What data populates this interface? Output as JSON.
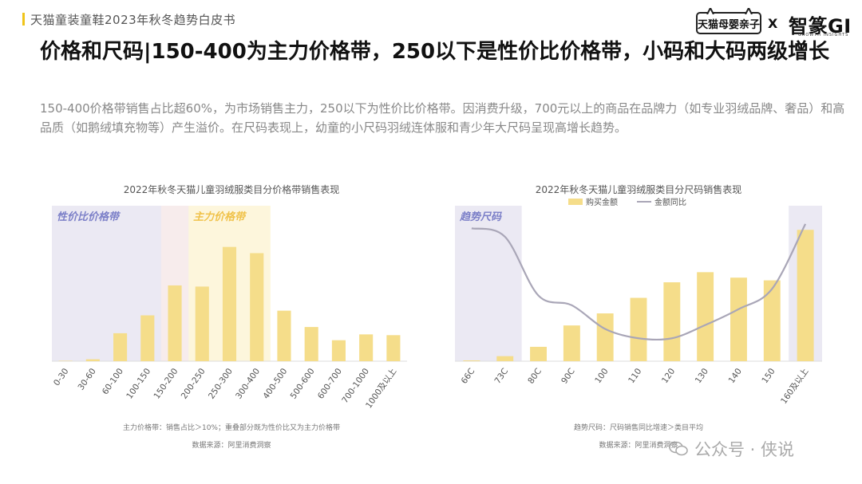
{
  "header": {
    "report_title": "天猫童装童鞋2023年秋冬趋势白皮书",
    "brand_left": "天猫母婴亲子",
    "brand_sep": "X",
    "brand_right": "智篆GI",
    "brand_right_sub": "GROWTH INSIGHTS"
  },
  "headline": "价格和尺码|150-400为主力价格带，250以下是性价比价格带，小码和大码两级增长",
  "subtext": "150-400价格带销售占比超60%，为市场销售主力，250以下为性价比价格带。因消费升级，700元以上的商品在品牌力（如专业羽绒品牌、奢品）和高品质（如鹅绒填充物等）产生溢价。在尺码表现上，幼童的小尺码羽绒连体服和青少年大尺码呈现高增长趋势。",
  "watermark": "公众号 · 侠说",
  "colors": {
    "bar": "#f5dd8a",
    "line": "#a9a6b7",
    "region_purple": "#ebe9f3",
    "region_pink": "#f7ecec",
    "region_yellow": "#fdf6dc",
    "region_label": "#7b7fc8",
    "region_label_yellow": "#f0c24a"
  },
  "chart_data": [
    {
      "type": "bar",
      "title": "2022年秋冬天猫儿童羽绒服类目分价格带销售表现",
      "categories": [
        "0-30",
        "30-60",
        "60-100",
        "100-150",
        "150-200",
        "200-250",
        "250-300",
        "300-400",
        "400-500",
        "500-600",
        "600-700",
        "700-1000",
        "1000及以上"
      ],
      "values": [
        0.1,
        0.5,
        7.2,
        11.8,
        19.5,
        19.2,
        29.4,
        27.8,
        13.0,
        8.8,
        5.4,
        6.9,
        6.7
      ],
      "ylim": [
        0,
        40
      ],
      "regions": [
        {
          "label": "性价比价格带",
          "from": 0,
          "to": 5,
          "style": "purple"
        },
        {
          "label": "主力价格带",
          "from": 4,
          "to": 7,
          "style": "yellow"
        }
      ],
      "footnote": "主力价格带：销售占比＞10%；重叠部分既为性价比又为主力价格带",
      "source": "数据来源：阿里消费洞察"
    },
    {
      "type": "bar+line",
      "title": "2022年秋冬天猫儿童羽绒服类目分尺码销售表现",
      "categories": [
        "66C",
        "73C",
        "80C",
        "90C",
        "100",
        "110",
        "120",
        "130",
        "140",
        "150",
        "160及以上"
      ],
      "series": [
        {
          "name": "购买金额",
          "type": "bar",
          "values": [
            0.2,
            1.3,
            3.7,
            9.2,
            12.3,
            16.3,
            20.3,
            22.9,
            21.5,
            20.8,
            33.8
          ]
        },
        {
          "name": "金额同比",
          "type": "line",
          "values": [
            34.2,
            32.0,
            16.9,
            14.4,
            8.3,
            5.9,
            5.9,
            9.3,
            13.4,
            18.6,
            35.3
          ]
        }
      ],
      "ylim": [
        0,
        40
      ],
      "regions": [
        {
          "label": "趋势尺码",
          "from": 0,
          "to": 1,
          "style": "purple"
        },
        {
          "label": "",
          "from": 10,
          "to": 10,
          "style": "purple"
        }
      ],
      "legend_position": "top",
      "footnote": "趋势尺码：尺码销售同比增速＞类目平均",
      "source": "数据来源：阿里消费洞察"
    }
  ]
}
